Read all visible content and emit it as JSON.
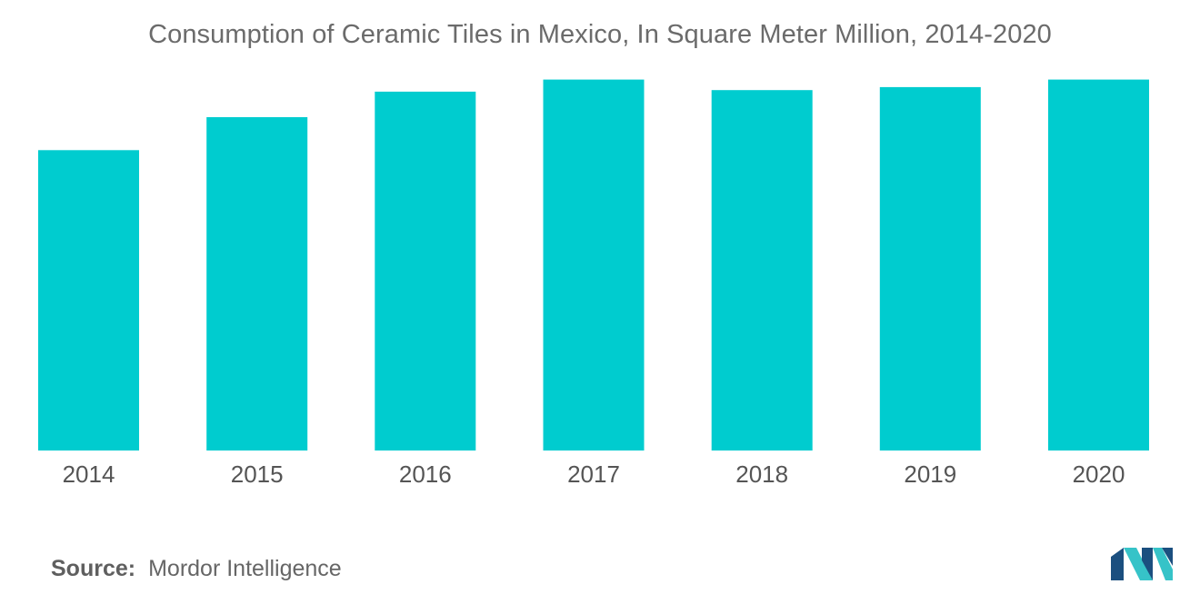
{
  "chart_data": {
    "type": "bar",
    "title": "Consumption of Ceramic Tiles in Mexico, In Square Meter Million, 2014-2020",
    "categories": [
      "2014",
      "2015",
      "2016",
      "2017",
      "2018",
      "2019",
      "2020"
    ],
    "values": [
      200,
      222,
      239,
      247,
      240,
      242,
      247
    ],
    "xlabel": "",
    "ylabel": "",
    "ylim": [
      0,
      300
    ],
    "grid": false,
    "bar_color": "#00cccf"
  },
  "source": {
    "label": "Source:",
    "text": "Mordor Intelligence"
  },
  "logo": {
    "icon": "mordor-intelligence-logo",
    "colors": [
      "#1b4f7f",
      "#36c3c8"
    ]
  }
}
